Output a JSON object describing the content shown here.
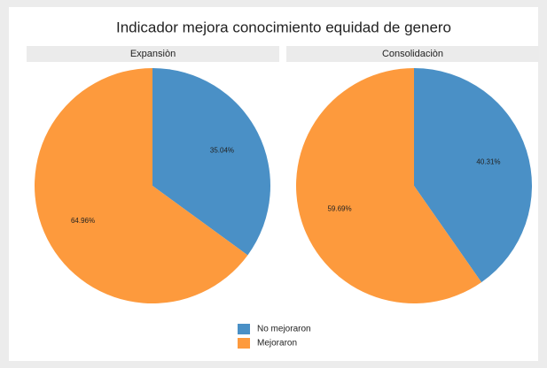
{
  "title": "Indicador mejora conocimiento equidad de genero",
  "chart_data": [
    {
      "type": "pie",
      "title": "Expansiòn",
      "categories": [
        "No mejoraron",
        "Mejoraron"
      ],
      "values": [
        35.04,
        64.96
      ],
      "value_labels": [
        "35.04%",
        "64.96%"
      ],
      "colors": [
        "#4a90c6",
        "#fd9a3d"
      ]
    },
    {
      "type": "pie",
      "title": "Consolidaciòn",
      "categories": [
        "No mejoraron",
        "Mejoraron"
      ],
      "values": [
        40.31,
        59.69
      ],
      "value_labels": [
        "40.31%",
        "59.69%"
      ],
      "colors": [
        "#4a90c6",
        "#fd9a3d"
      ]
    }
  ]
}
